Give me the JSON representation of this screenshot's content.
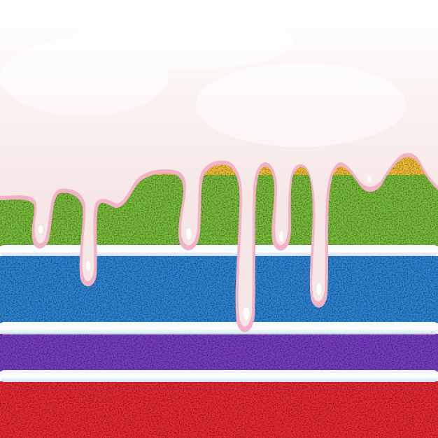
{
  "scene": {
    "subject": "rainbow-cake-cross-section",
    "colors": {
      "background": "#ffffff",
      "frosting": "#f6e7e6",
      "frosting_edge": "#f2b3c6",
      "drip_highlight": "#ffffff",
      "cream": "#eef5fb",
      "cream_shadow": "#c9dcef",
      "layer_yellow": "#f7c33a",
      "layer_green": "#7cc23c",
      "layer_blue": "#2f87d8",
      "layer_purple": "#7a3fc7",
      "layer_red": "#ec2b33"
    }
  }
}
